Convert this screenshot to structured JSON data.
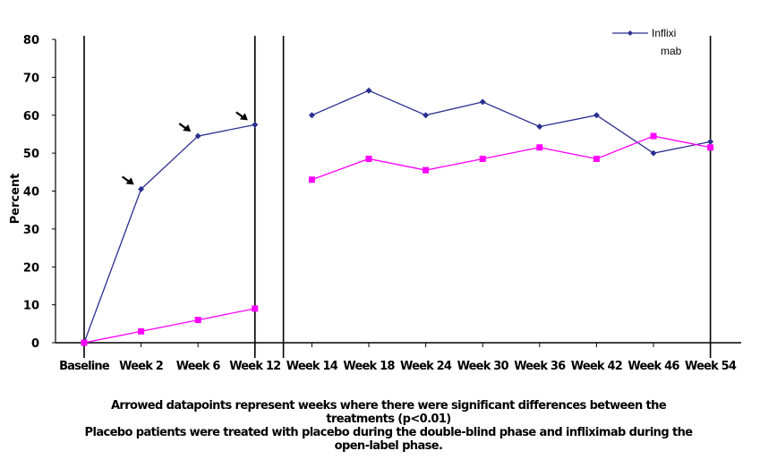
{
  "chart_data": {
    "type": "line",
    "ylabel": "Percent",
    "ylim": [
      0,
      80
    ],
    "yticks": [
      0,
      10,
      20,
      30,
      40,
      50,
      60,
      70,
      80
    ],
    "x_positions": [
      0,
      1,
      2,
      3,
      4,
      5,
      6,
      7,
      8,
      9,
      10,
      11
    ],
    "categories": [
      "Baseline",
      "Week 2",
      "Week 6",
      "Week 12",
      "Week 14",
      "Week 18",
      "Week 24",
      "Week 30",
      "Week 36",
      "Week 42",
      "Week 46",
      "Week 54"
    ],
    "series": [
      {
        "name": "Infliximab",
        "color": "#2b2f8f",
        "marker": "diamond",
        "values": [
          0,
          40.5,
          54.5,
          57.5,
          60,
          66.5,
          60,
          63.5,
          57,
          60,
          50,
          53
        ]
      },
      {
        "name": "",
        "color": "#ff00ff",
        "marker": "square",
        "values": [
          0,
          3,
          6,
          9,
          43,
          48.5,
          45.5,
          48.5,
          51.5,
          48.5,
          54.5,
          51.5
        ]
      }
    ],
    "legend_labels": [
      "Inflixi",
      "mab"
    ],
    "legend_position": "top-right",
    "segment_breaks_after": [
      3
    ],
    "vertical_line_positions": [
      0,
      3,
      3.5,
      11
    ],
    "arrowed_points": [
      1,
      2,
      3
    ]
  },
  "caption": {
    "line1": "Arrowed datapoints represent weeks where there were significant differences between the",
    "line2": "treatments (p<0.01)",
    "line3": "Placebo patients were treated with placebo during the double-blind phase and infliximab during the",
    "line4": "open-label phase."
  }
}
